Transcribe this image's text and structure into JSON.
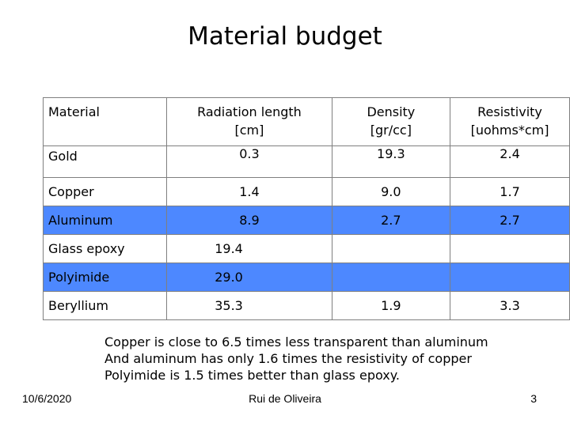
{
  "title": "Material budget",
  "table": {
    "headers": {
      "material": "Material",
      "radiation_l1": "Radiation length",
      "radiation_l2": "[cm]",
      "density_l1": "Density",
      "density_l2": "[gr/cc]",
      "resistivity_l1": "Resistivity",
      "resistivity_l2": "[uohms*cm]"
    },
    "rows": [
      {
        "material": "Gold",
        "radiation": "0.3",
        "density": "19.3",
        "resistivity": "2.4"
      },
      {
        "material": "Copper",
        "radiation": "1.4",
        "density": "9.0",
        "resistivity": "1.7"
      },
      {
        "material": "Aluminum",
        "radiation": "8.9",
        "density": "2.7",
        "resistivity": "2.7"
      },
      {
        "material": "Glass epoxy",
        "radiation": "19.4",
        "density": "",
        "resistivity": ""
      },
      {
        "material": "Polyimide",
        "radiation": "29.0",
        "density": "",
        "resistivity": ""
      },
      {
        "material": "Beryllium",
        "radiation": "35.3",
        "density": "1.9",
        "resistivity": "3.3"
      }
    ]
  },
  "notes": [
    "Copper is close to 6.5 times less transparent than aluminum",
    "And aluminum has only 1.6 times the resistivity of copper",
    "Polyimide is 1.5 times better than glass epoxy."
  ],
  "footer": {
    "date": "10/6/2020",
    "author": "Rui de Oliveira",
    "page": "3"
  },
  "colors": {
    "highlight": "#4d88ff",
    "grid": "#7f7f7f"
  }
}
